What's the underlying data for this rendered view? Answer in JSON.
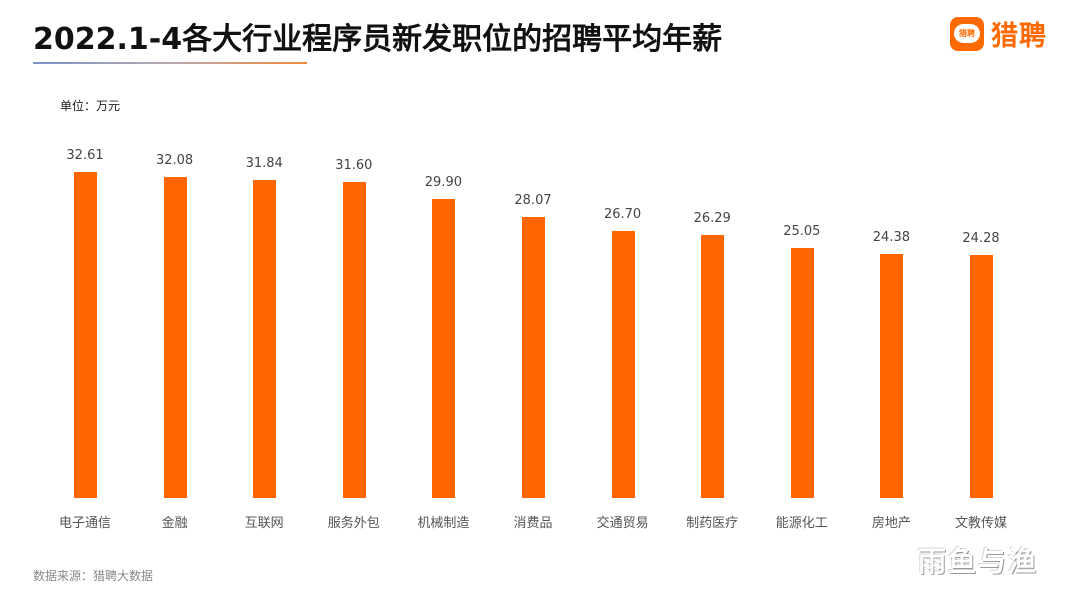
{
  "header": {
    "title": "2022.1-4各大行业程序员新发职位的招聘平均年薪",
    "logo_badge_text": "猎聘",
    "logo_text": "猎聘"
  },
  "unit_label": "单位：万元",
  "footer": {
    "source": "数据来源：猎聘大数据",
    "watermark": "雨鱼与渔"
  },
  "colors": {
    "bar": "#ff6600",
    "brand": "#ff6a00",
    "title": "#111111"
  },
  "chart_data": {
    "type": "bar",
    "title": "2022.1-4各大行业程序员新发职位的招聘平均年薪",
    "xlabel": "",
    "ylabel": "单位：万元",
    "ylim": [
      0,
      33
    ],
    "grid": false,
    "legend": "none",
    "categories": [
      "电子通信",
      "金融",
      "互联网",
      "服务外包",
      "机械制造",
      "消费品",
      "交通贸易",
      "制药医疗",
      "能源化工",
      "房地产",
      "文教传媒"
    ],
    "values": [
      32.61,
      32.08,
      31.84,
      31.6,
      29.9,
      28.07,
      26.7,
      26.29,
      25.05,
      24.38,
      24.28
    ],
    "value_labels": [
      "32.61",
      "32.08",
      "31.84",
      "31.60",
      "29.90",
      "28.07",
      "26.70",
      "26.29",
      "25.05",
      "24.38",
      "24.28"
    ]
  }
}
